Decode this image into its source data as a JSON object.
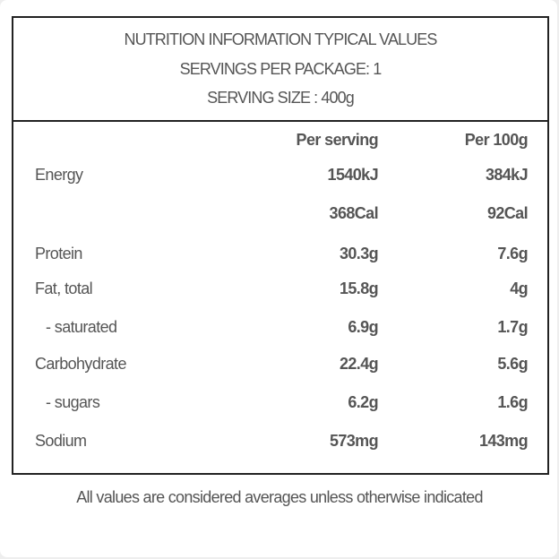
{
  "header": {
    "title": "NUTRITION INFORMATION TYPICAL VALUES",
    "servings_per_package": "SERVINGS PER PACKAGE: 1",
    "serving_size": "SERVING SIZE : 400g"
  },
  "columns": {
    "per_serving": "Per serving",
    "per_100g": "Per 100g"
  },
  "rows": [
    {
      "label": "Energy",
      "per_serving": "1540kJ",
      "per_100g": "384kJ"
    },
    {
      "label": "",
      "per_serving": "368Cal",
      "per_100g": "92Cal"
    },
    {
      "label": "Protein",
      "per_serving": "30.3g",
      "per_100g": "7.6g"
    },
    {
      "label": "Fat, total",
      "per_serving": "15.8g",
      "per_100g": "4g"
    },
    {
      "label": "- saturated",
      "per_serving": "6.9g",
      "per_100g": "1.7g"
    },
    {
      "label": "Carbohydrate",
      "per_serving": "22.4g",
      "per_100g": "5.6g"
    },
    {
      "label": "- sugars",
      "per_serving": "6.2g",
      "per_100g": "1.6g"
    },
    {
      "label": "Sodium",
      "per_serving": "573mg",
      "per_100g": "143mg"
    }
  ],
  "footer": "All values are considered averages unless otherwise indicated"
}
